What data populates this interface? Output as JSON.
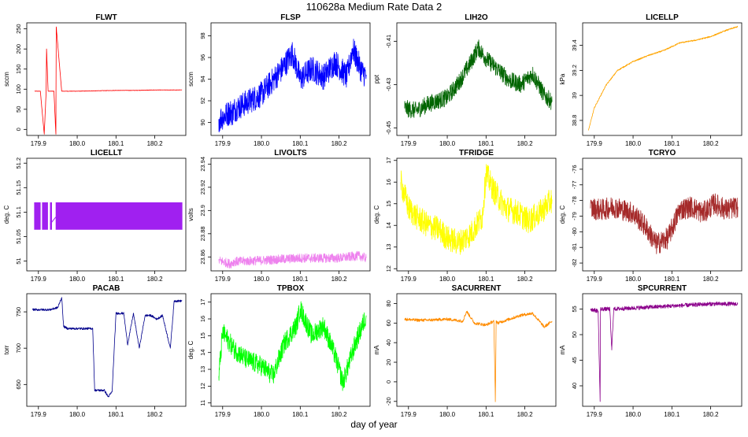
{
  "figure": {
    "title": "110628a   Medium Rate Data 2",
    "xlabel": "day of year"
  },
  "chart_data": [
    {
      "type": "line",
      "title": "FLWT",
      "ylabel": "sccm",
      "color": "#ff0000",
      "xlim": [
        179.87,
        180.28
      ],
      "ylim": [
        -15,
        265
      ],
      "xticks": [
        179.9,
        180.0,
        180.1,
        180.2
      ],
      "yticks": [
        0,
        50,
        100,
        150,
        200,
        250
      ],
      "x": [
        179.89,
        179.905,
        179.915,
        179.92,
        179.921,
        179.925,
        179.94,
        179.945,
        179.946,
        179.96,
        180.0,
        180.05,
        180.1,
        180.15,
        180.2,
        180.27
      ],
      "y": [
        95,
        95,
        -12,
        95,
        200,
        95,
        95,
        -12,
        255,
        95,
        95,
        96,
        97,
        97,
        98,
        98
      ],
      "noise": 0.5
    },
    {
      "type": "line",
      "title": "FLSP",
      "ylabel": "sccm",
      "color": "#0000ff",
      "xlim": [
        179.87,
        180.28
      ],
      "ylim": [
        88.8,
        99.2
      ],
      "xticks": [
        179.9,
        180.0,
        180.1,
        180.2
      ],
      "yticks": [
        90,
        92,
        94,
        96,
        98
      ],
      "x": [
        179.89,
        179.905,
        179.92,
        179.925,
        179.93,
        179.95,
        180.0,
        180.05,
        180.08,
        180.1,
        180.13,
        180.16,
        180.19,
        180.22,
        180.235,
        180.26,
        180.27
      ],
      "y": [
        90.3,
        90.6,
        91.0,
        90.8,
        91.2,
        91.6,
        92.6,
        94.8,
        96.4,
        94.0,
        95.0,
        94.2,
        95.6,
        94.2,
        96.8,
        94.6,
        94.4
      ],
      "noise": 1.2
    },
    {
      "type": "line",
      "title": "LIH2O",
      "ylabel": "ppt",
      "color": "#006400",
      "xlim": [
        179.87,
        180.28
      ],
      "ylim": [
        -0.4535,
        -0.4015
      ],
      "xticks": [
        179.9,
        180.0,
        180.1,
        180.2
      ],
      "yticks": [
        -0.45,
        -0.43,
        -0.41
      ],
      "x": [
        179.89,
        179.92,
        179.95,
        180.0,
        180.03,
        180.06,
        180.08,
        180.1,
        180.13,
        180.16,
        180.19,
        180.22,
        180.25,
        180.27
      ],
      "y": [
        -0.441,
        -0.442,
        -0.439,
        -0.436,
        -0.429,
        -0.42,
        -0.413,
        -0.418,
        -0.423,
        -0.428,
        -0.43,
        -0.425,
        -0.435,
        -0.438
      ],
      "noise": 0.004
    },
    {
      "type": "line",
      "title": "LICELLP",
      "ylabel": "kPa",
      "color": "#ffa500",
      "xlim": [
        179.87,
        180.28
      ],
      "ylim": [
        38.68,
        39.58
      ],
      "xticks": [
        179.9,
        180.0,
        180.1,
        180.2
      ],
      "yticks": [
        38.8,
        39.0,
        39.2,
        39.4
      ],
      "x": [
        179.885,
        179.9,
        179.93,
        179.96,
        180.0,
        180.04,
        180.08,
        180.12,
        180.16,
        180.2,
        180.24,
        180.27
      ],
      "y": [
        38.72,
        38.9,
        39.08,
        39.2,
        39.27,
        39.32,
        39.36,
        39.42,
        39.44,
        39.47,
        39.52,
        39.55
      ],
      "noise": 0.005
    },
    {
      "type": "line",
      "title": "LICELLT",
      "ylabel": "deg. C",
      "color": "#a020f0",
      "xlim": [
        179.87,
        180.28
      ],
      "ylim": [
        50.98,
        51.21
      ],
      "xticks": [
        179.9,
        180.0,
        180.1,
        180.2
      ],
      "yticks": [
        51.0,
        51.05,
        51.1,
        51.15,
        51.2
      ],
      "x": [
        179.89,
        179.92,
        179.95,
        180.27
      ],
      "y": [
        51.09,
        51.09,
        51.09,
        51.09
      ],
      "band": [
        51.064,
        51.12
      ],
      "noise": 0
    },
    {
      "type": "line",
      "title": "LIVOLTS",
      "ylabel": "volts",
      "color": "#ee82ee",
      "xlim": [
        179.87,
        180.28
      ],
      "ylim": [
        23.848,
        23.945
      ],
      "xticks": [
        179.9,
        180.0,
        180.1,
        180.2
      ],
      "yticks": [
        23.86,
        23.88,
        23.9,
        23.92,
        23.94
      ],
      "x": [
        179.89,
        179.92,
        179.93,
        180.0,
        180.1,
        180.2,
        180.25,
        180.27
      ],
      "y": [
        23.857,
        23.854,
        23.856,
        23.857,
        23.859,
        23.859,
        23.861,
        23.859
      ],
      "noise": 0.004
    },
    {
      "type": "line",
      "title": "TFRIDGE",
      "ylabel": "deg. C",
      "color": "#ffff00",
      "xlim": [
        179.87,
        180.28
      ],
      "ylim": [
        11.9,
        17.1
      ],
      "xticks": [
        179.9,
        180.0,
        180.1,
        180.2
      ],
      "yticks": [
        12,
        13,
        14,
        15,
        16,
        17
      ],
      "x": [
        179.88,
        179.9,
        179.92,
        179.95,
        179.98,
        180.0,
        180.03,
        180.06,
        180.09,
        180.1,
        180.12,
        180.15,
        180.18,
        180.21,
        180.24,
        180.27
      ],
      "y": [
        16.0,
        14.8,
        14.4,
        14.0,
        13.8,
        13.4,
        13.2,
        13.6,
        14.4,
        16.4,
        15.6,
        14.8,
        14.6,
        14.2,
        14.6,
        15.2
      ],
      "noise": 0.6
    },
    {
      "type": "line",
      "title": "TCRYO",
      "ylabel": "deg. C",
      "color": "#a52a2a",
      "xlim": [
        179.87,
        180.28
      ],
      "ylim": [
        -82.5,
        -75.3
      ],
      "xticks": [
        179.9,
        180.0,
        180.1,
        180.2
      ],
      "yticks": [
        -82,
        -81,
        -80,
        -79,
        -78,
        -77,
        -76
      ],
      "x": [
        179.89,
        179.92,
        179.95,
        180.0,
        180.03,
        180.06,
        180.09,
        180.12,
        180.15,
        180.18,
        180.21,
        180.24,
        180.27
      ],
      "y": [
        -78.5,
        -78.6,
        -78.4,
        -78.8,
        -79.6,
        -80.8,
        -80.4,
        -78.6,
        -78.4,
        -78.8,
        -78.2,
        -78.6,
        -78.4
      ],
      "noise": 0.7
    },
    {
      "type": "line",
      "title": "PACAB",
      "ylabel": "torr",
      "color": "#00008b",
      "xlim": [
        179.87,
        180.28
      ],
      "ylim": [
        620,
        775
      ],
      "xticks": [
        179.9,
        180.0,
        180.1,
        180.2
      ],
      "yticks": [
        650,
        700,
        750
      ],
      "x": [
        179.885,
        179.93,
        179.95,
        179.96,
        179.965,
        179.975,
        180.01,
        180.04,
        180.045,
        180.07,
        180.08,
        180.09,
        180.1,
        180.12,
        180.13,
        180.145,
        180.16,
        180.175,
        180.19,
        180.205,
        180.22,
        180.24,
        180.25,
        180.27
      ],
      "y": [
        753,
        753,
        756,
        770,
        730,
        727,
        727,
        727,
        642,
        642,
        633,
        640,
        748,
        748,
        705,
        748,
        700,
        745,
        745,
        740,
        745,
        700,
        765,
        765
      ],
      "noise": 1.5
    },
    {
      "type": "line",
      "title": "TPBOX",
      "ylabel": "deg. C",
      "color": "#00ff00",
      "xlim": [
        179.87,
        180.28
      ],
      "ylim": [
        10.8,
        17.5
      ],
      "xticks": [
        179.9,
        180.0,
        180.1,
        180.2
      ],
      "yticks": [
        11,
        12,
        13,
        14,
        15,
        16,
        17
      ],
      "x": [
        179.89,
        179.9,
        179.93,
        179.96,
        180.0,
        180.03,
        180.06,
        180.09,
        180.1,
        180.13,
        180.16,
        180.19,
        180.21,
        180.24,
        180.27
      ],
      "y": [
        12.6,
        15.2,
        14.2,
        13.6,
        13.2,
        12.6,
        14.6,
        15.6,
        16.6,
        15.0,
        15.6,
        13.8,
        12.2,
        14.4,
        16.2
      ],
      "noise": 0.6
    },
    {
      "type": "line",
      "title": "SACURRENT",
      "ylabel": "mA",
      "color": "#ff8c00",
      "xlim": [
        179.87,
        180.28
      ],
      "ylim": [
        -25,
        90
      ],
      "xticks": [
        179.9,
        180.0,
        180.1,
        180.2
      ],
      "yticks": [
        -20,
        0,
        20,
        40,
        60,
        80
      ],
      "x": [
        179.89,
        179.92,
        179.95,
        180.0,
        180.04,
        180.05,
        180.07,
        180.1,
        180.12,
        180.124,
        180.126,
        180.13,
        180.16,
        180.19,
        180.22,
        180.25,
        180.27
      ],
      "y": [
        64,
        63,
        63,
        64,
        62,
        72,
        60,
        58,
        62,
        -20,
        62,
        60,
        64,
        68,
        70,
        56,
        62
      ],
      "noise": 1.5
    },
    {
      "type": "line",
      "title": "SPCURRENT",
      "ylabel": "mA",
      "color": "#8b008b",
      "xlim": [
        179.87,
        180.28
      ],
      "ylim": [
        36,
        58
      ],
      "xticks": [
        179.9,
        180.0,
        180.1,
        180.2
      ],
      "yticks": [
        40,
        45,
        50,
        55
      ],
      "x": [
        179.89,
        179.91,
        179.915,
        179.916,
        179.92,
        179.94,
        179.945,
        179.95,
        180.0,
        180.05,
        180.1,
        180.15,
        180.2,
        180.27
      ],
      "y": [
        55,
        54.6,
        37,
        55,
        55,
        55,
        47,
        55,
        55.2,
        55.4,
        55.6,
        55.8,
        56,
        56
      ],
      "noise": 0.4
    }
  ]
}
